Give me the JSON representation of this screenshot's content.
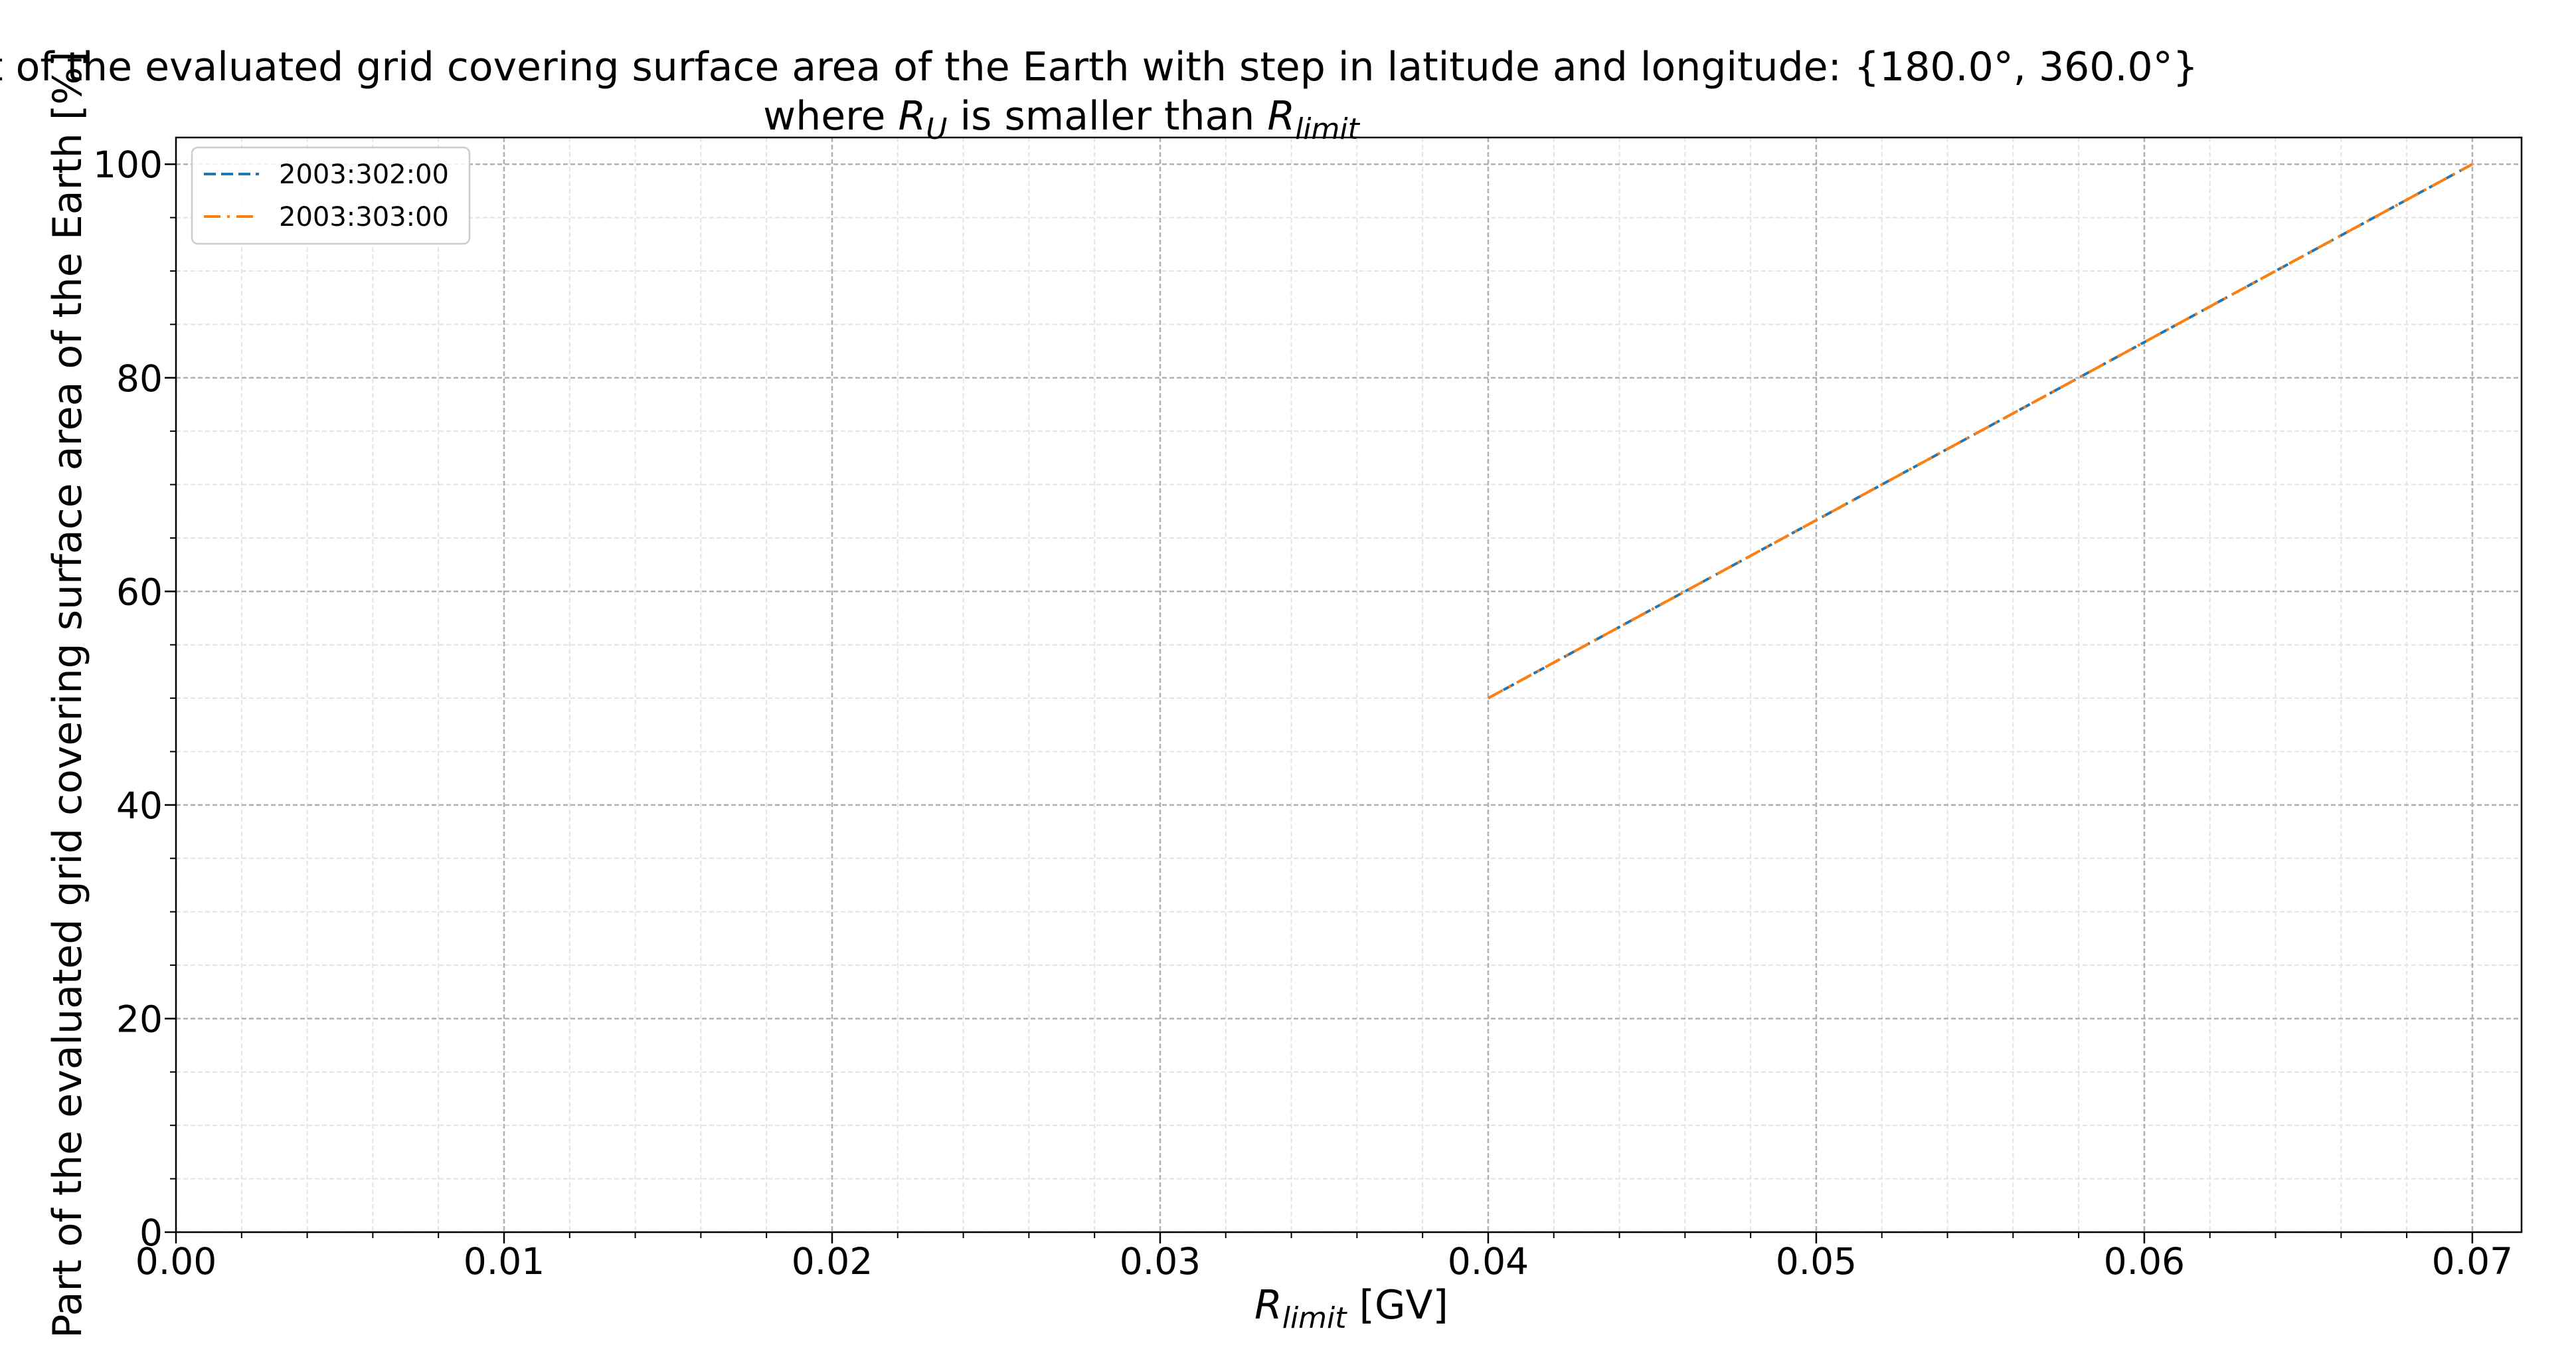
{
  "chart_data": {
    "type": "line",
    "title": {
      "line1": "Part of the evaluated grid covering surface area of the Earth with step in latitude and longitude: {180.0°, 360.0°}",
      "line2": {
        "before": "where ",
        "r1": "R",
        "r1_sub": "U",
        "middle": " is smaller than ",
        "r2": "R",
        "r2_sub": "limit"
      }
    },
    "xlabel": {
      "symbol": "R",
      "subscript": "limit",
      "unit": " [GV]"
    },
    "ylabel": "Part of the evaluated grid covering surface area of the Earth  [%]",
    "xlim": [
      0,
      0.0715
    ],
    "ylim": [
      0,
      102.5
    ],
    "xticks": [
      0.0,
      0.01,
      0.02,
      0.03,
      0.04,
      0.05,
      0.06,
      0.07
    ],
    "xtick_labels": [
      "0.00",
      "0.01",
      "0.02",
      "0.03",
      "0.04",
      "0.05",
      "0.06",
      "0.07"
    ],
    "yticks": [
      0,
      20,
      40,
      60,
      80,
      100
    ],
    "ytick_labels": [
      "0",
      "20",
      "40",
      "60",
      "80",
      "100"
    ],
    "x_minor_step": 0.002,
    "y_minor_step": 5,
    "grid": true,
    "legend_position": "upper left",
    "series": [
      {
        "name": "2003:302:00",
        "color": "#1f77b4",
        "linestyle": "dashed",
        "x": [
          0.04,
          0.07
        ],
        "y": [
          50,
          100
        ]
      },
      {
        "name": "2003:303:00",
        "color": "#ff7f0e",
        "linestyle": "dashdot",
        "x": [
          0.04,
          0.07
        ],
        "y": [
          50,
          100
        ]
      }
    ]
  }
}
